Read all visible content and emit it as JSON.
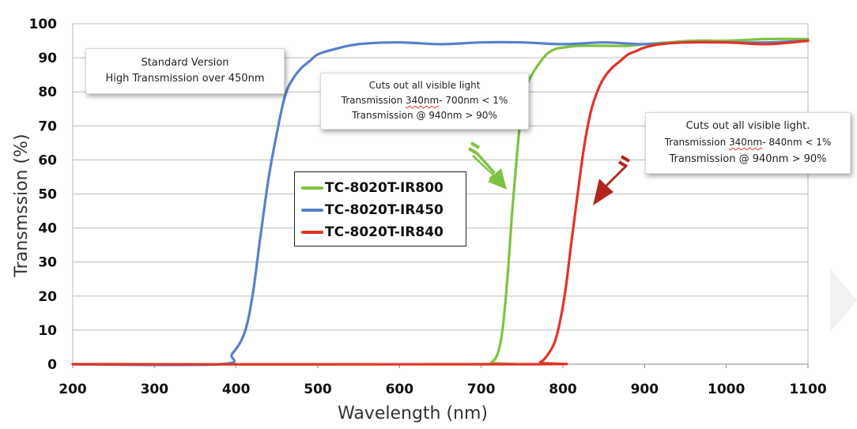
{
  "chart_data": {
    "type": "line",
    "title": "",
    "xlabel": "Wavelength (nm)",
    "ylabel": "Transmssion (%)",
    "xlim": [
      200,
      1100
    ],
    "ylim": [
      0,
      100
    ],
    "xticks": [
      200,
      300,
      400,
      500,
      600,
      700,
      800,
      900,
      1000,
      1100
    ],
    "yticks": [
      0,
      10,
      20,
      30,
      40,
      50,
      60,
      70,
      80,
      90,
      100
    ],
    "grid": "horizontal",
    "series": [
      {
        "name": "TC-8020T-IR800",
        "color": "#7fc241",
        "x": [
          200,
          700,
          712,
          720,
          726,
          732,
          738,
          744,
          750,
          756,
          762,
          770,
          780,
          790,
          800,
          820,
          850,
          880,
          900,
          930,
          960,
          1000,
          1050,
          1100
        ],
        "y": [
          0,
          0,
          0.5,
          3,
          10,
          25,
          45,
          62,
          76,
          82,
          85,
          88,
          91,
          92.5,
          93,
          93.5,
          93.5,
          93.5,
          94,
          94.5,
          95,
          95,
          95.5,
          95.5
        ]
      },
      {
        "name": "TC-8020T-IR450",
        "color": "#5b7fcb",
        "x": [
          200,
          380,
          395,
          410,
          420,
          430,
          440,
          450,
          460,
          470,
          480,
          490,
          500,
          520,
          550,
          600,
          650,
          700,
          750,
          800,
          850,
          900,
          950,
          1000,
          1050,
          1100
        ],
        "y": [
          0,
          0,
          3,
          9,
          20,
          38,
          55,
          68,
          79,
          84,
          87,
          89,
          91,
          92.5,
          94,
          94.5,
          94,
          94.5,
          94.5,
          94,
          94.5,
          94,
          94.5,
          94.5,
          94.5,
          95
        ]
      },
      {
        "name": "TC-8020T-IR840",
        "color": "#e03428",
        "x": [
          200,
          760,
          772,
          782,
          792,
          802,
          810,
          818,
          826,
          834,
          842,
          850,
          860,
          870,
          880,
          890,
          900,
          920,
          950,
          1000,
          1050,
          1100
        ],
        "y": [
          0,
          0,
          0.5,
          3,
          8,
          20,
          35,
          50,
          64,
          74,
          80,
          84,
          87,
          89,
          91,
          92,
          93,
          94,
          94.5,
          94.5,
          94,
          95
        ]
      }
    ],
    "annotations": {
      "box1": [
        "Standard Version",
        "High Transmission over 450nm"
      ],
      "box2": [
        "Cuts out all visible light",
        "Transmission ",
        "340nm",
        "- 700nm < 1%",
        "Transmission @ 940nm > 90%"
      ],
      "box3": [
        "Cuts out all visible light.",
        "Transmission ",
        "340nm",
        "- 840nm < 1%",
        "Transmission @ 940nm > 90%"
      ]
    },
    "arrow_colors": {
      "green": "#7fc241",
      "red": "#b0261c"
    }
  }
}
